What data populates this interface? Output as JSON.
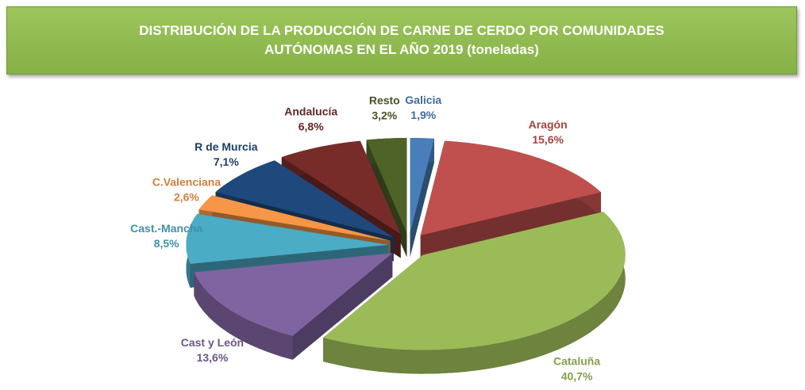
{
  "chart_data": {
    "type": "pie3d",
    "title": "DISTRIBUCIÓN DE LA PRODUCCIÓN DE CARNE DE CERDO POR COMUNIDADES AUTÓNOMAS EN EL AÑO 2019 (toneladas)",
    "categories": [
      "Galicia",
      "Aragón",
      "Cataluña",
      "Cast y León",
      "Cast.-Mancha",
      "C.Valenciana",
      "R de Murcia",
      "Andalucía",
      "Resto"
    ],
    "values": [
      1.9,
      15.6,
      40.7,
      13.6,
      8.5,
      2.6,
      7.1,
      6.8,
      3.2
    ],
    "value_labels": [
      "1,9%",
      "15,6%",
      "40,7%",
      "13,6%",
      "8,5%",
      "2,6%",
      "7,1%",
      "6,8%",
      "3,2%"
    ],
    "colors": [
      "#4a7ebb",
      "#c0504d",
      "#9bbb59",
      "#8064a2",
      "#4bacc6",
      "#f79646",
      "#1f497d",
      "#772c2a",
      "#4f6228"
    ]
  }
}
